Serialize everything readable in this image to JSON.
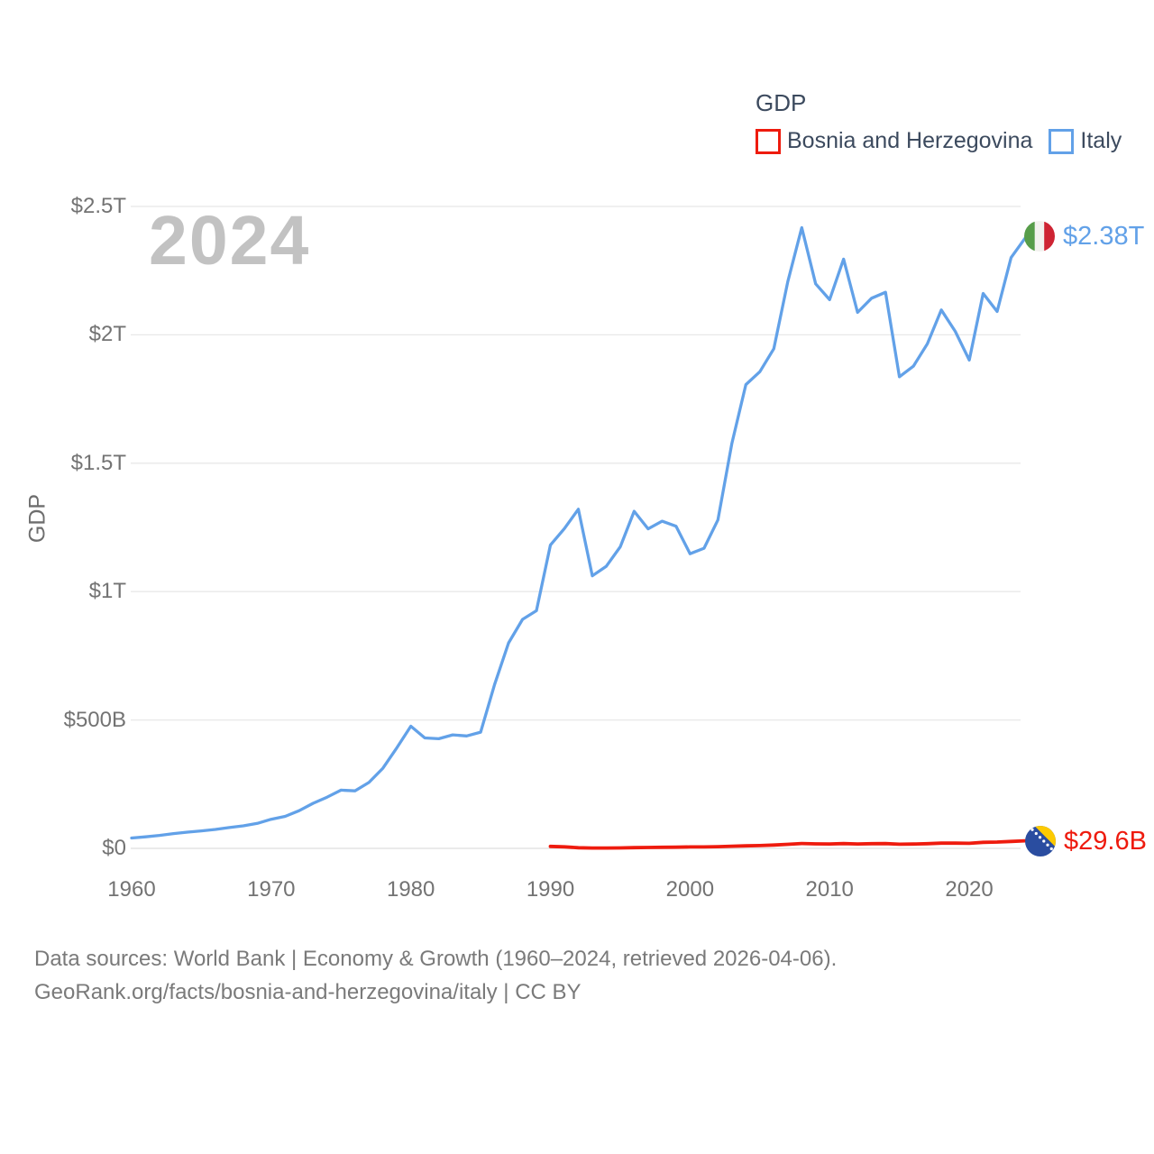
{
  "page": {
    "footer": {
      "line1": "Data sources: World Bank | Economy & Growth (1960–2024, retrieved 2026-04-06).",
      "line2": "GeoRank.org/facts/bosnia-and-herzegovina/italy | CC BY"
    }
  },
  "chart_data": {
    "type": "line",
    "title": "GDP",
    "ylabel": "GDP",
    "watermark": "2024",
    "grid": true,
    "legend_position": "top-right",
    "x_range": [
      1960,
      2024
    ],
    "y_range_billions": [
      0,
      2500
    ],
    "x_ticks": [
      1960,
      1970,
      1980,
      1990,
      2000,
      2010,
      2020
    ],
    "y_ticks": [
      {
        "value": 0,
        "label": "$0"
      },
      {
        "value": 500,
        "label": "$500B"
      },
      {
        "value": 1000,
        "label": "$1T"
      },
      {
        "value": 1500,
        "label": "$1.5T"
      },
      {
        "value": 2000,
        "label": "$2T"
      },
      {
        "value": 2500,
        "label": "$2.5T"
      }
    ],
    "series": [
      {
        "name": "Bosnia and Herzegovina",
        "color": "#ee1b0e",
        "end_label": "$29.6B",
        "flag_icon": "bosnia-and-herzegovina-flag",
        "start_year": 1990,
        "values_billion_usd": [
          7.8,
          6.0,
          2.6,
          1.4,
          1.3,
          1.9,
          2.8,
          3.4,
          4.1,
          4.7,
          5.5,
          5.7,
          6.7,
          8.4,
          10.0,
          11.0,
          12.9,
          15.8,
          19.1,
          17.6,
          17.2,
          18.6,
          17.2,
          18.2,
          18.6,
          16.2,
          16.9,
          18.1,
          20.2,
          20.5,
          19.8,
          23.4,
          24.5,
          27.1,
          29.6
        ]
      },
      {
        "name": "Italy",
        "color": "#62a1e8",
        "end_label": "$2.38T",
        "flag_icon": "italy-flag",
        "start_year": 1960,
        "values_billion_usd": [
          40.4,
          44.8,
          50.4,
          57.7,
          63.2,
          68.0,
          73.8,
          81.1,
          87.9,
          97.1,
          113.4,
          124.6,
          146.6,
          175.4,
          199.3,
          227.0,
          224.1,
          256.7,
          312.1,
          392.0,
          475.7,
          430.2,
          427.0,
          441.9,
          437.8,
          452.7,
          638.2,
          800.3,
          892.0,
          925.5,
          1181.2,
          1245.3,
          1320.8,
          1061.3,
          1098.5,
          1174.6,
          1312.7,
          1244.5,
          1274.2,
          1254.5,
          1147.6,
          1168.9,
          1279.0,
          1577.7,
          1806.1,
          1856.4,
          1946.1,
          2207.1,
          2417.5,
          2198.9,
          2136.9,
          2295.1,
          2087.3,
          2142.5,
          2165.8,
          1836.6,
          1877.9,
          1965.0,
          2097.0,
          2013.2,
          1901.8,
          2161.0,
          2091.0,
          2301.0,
          2376.5
        ]
      }
    ]
  }
}
